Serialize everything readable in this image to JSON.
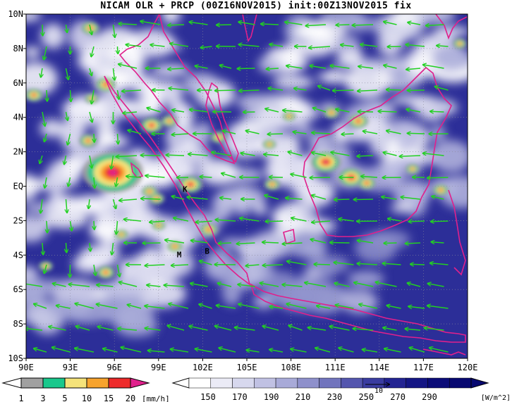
{
  "title": "NICAM OLR + PRCP (00Z16NOV2015) init:00Z13NOV2015 fix",
  "map": {
    "lon_min": 90,
    "lon_max": 120,
    "lat_min": -10,
    "lat_max": 10,
    "lat_labels": [
      "10N",
      "8N",
      "6N",
      "4N",
      "2N",
      "EQ",
      "2S",
      "4S",
      "6S",
      "8S",
      "10S"
    ],
    "lon_labels": [
      "90E",
      "93E",
      "96E",
      "99E",
      "102E",
      "105E",
      "108E",
      "111E",
      "114E",
      "117E",
      "120E"
    ],
    "markers": [
      {
        "label": "K",
        "lon": 100.8,
        "lat": -0.2
      },
      {
        "label": "M",
        "lon": 100.4,
        "lat": -4.0
      },
      {
        "label": "B",
        "lon": 102.3,
        "lat": -3.8
      }
    ],
    "vector_reference": "10"
  },
  "precip_colorbar": {
    "labels": [
      "1",
      "3",
      "5",
      "10",
      "15",
      "20"
    ],
    "unit": "[mm/h]",
    "colors": [
      "#a0a0a0",
      "#1ac88c",
      "#f5e37a",
      "#f7a32d",
      "#ee2b2b",
      "#e0208c"
    ]
  },
  "olr_colorbar": {
    "labels": [
      "150",
      "170",
      "190",
      "210",
      "230",
      "250",
      "270",
      "290"
    ],
    "unit": "[W/m^2]",
    "colors": [
      "#ffffff",
      "#ebebf6",
      "#d7d8ee",
      "#c0c1e3",
      "#a8aad8",
      "#8e90cb",
      "#7174bd",
      "#5456ae",
      "#3a3ca0",
      "#232492",
      "#141684",
      "#0b0c78",
      "#070870"
    ]
  },
  "colors": {
    "coastline": "#e0208c",
    "wind_vector": "#22d022",
    "background_olr": "#2a2c96"
  }
}
